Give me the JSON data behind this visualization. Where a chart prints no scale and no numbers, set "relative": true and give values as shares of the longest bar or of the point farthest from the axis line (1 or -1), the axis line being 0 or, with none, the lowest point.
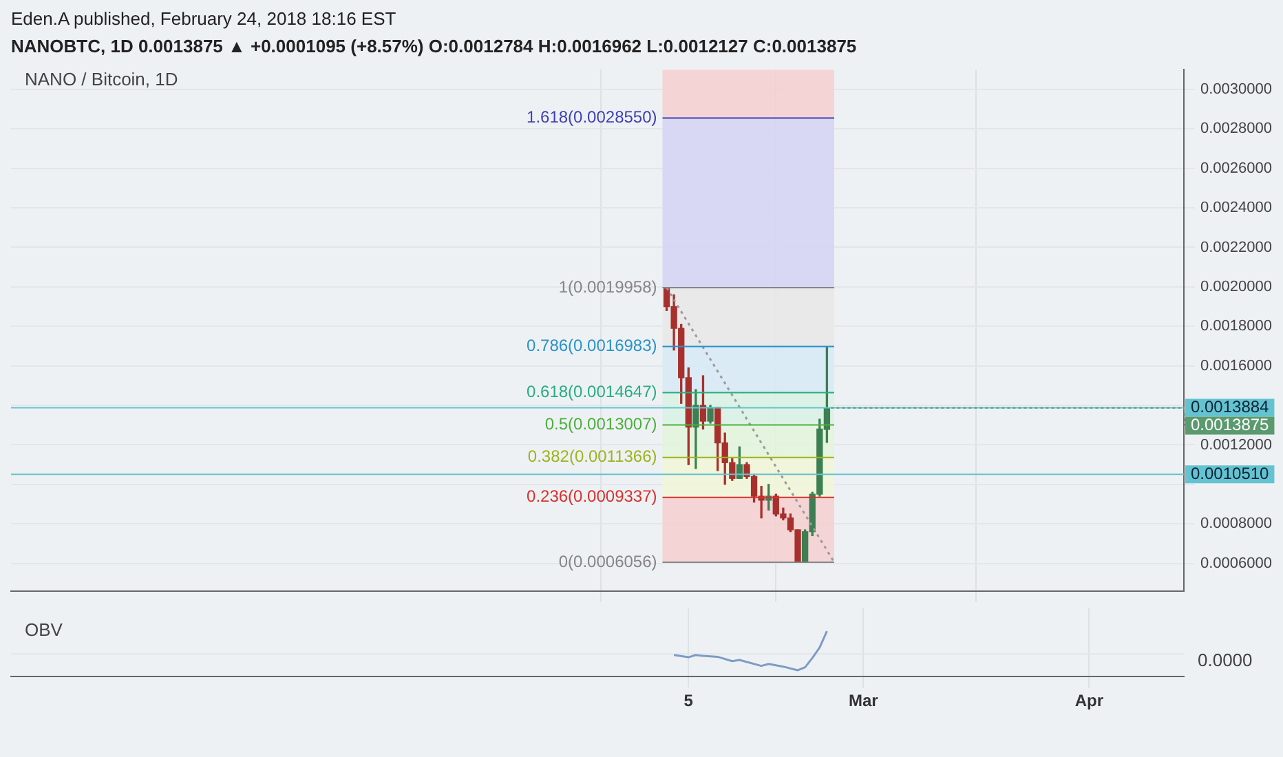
{
  "chart_data": [
    {
      "type": "candlestick",
      "title": "Eden.A published, February 24, 2018 18:16 EST",
      "subtitle": "NANOBTC, 1D  0.0013875 ▲ +0.0001095 (+8.57%) O:0.0012784 H:0.0016962 L:0.0012127 C:0.0013875",
      "annotations": [
        "NANO / Bitcoin, 1D",
        {
          "text": "0.0013875",
          "x": "2018-02-24",
          "y": 0.0013875
        }
      ],
      "x": [
        "2018-02-02",
        "2018-02-03",
        "2018-02-04",
        "2018-02-05",
        "2018-02-06",
        "2018-02-07",
        "2018-02-08",
        "2018-02-09",
        "2018-02-10",
        "2018-02-11",
        "2018-02-12",
        "2018-02-13",
        "2018-02-14",
        "2018-02-15",
        "2018-02-16",
        "2018-02-17",
        "2018-02-18",
        "2018-02-19",
        "2018-02-20",
        "2018-02-21",
        "2018-02-22",
        "2018-02-23",
        "2018-02-24"
      ],
      "ohlc": [
        [
          0.00199,
          0.0019958,
          0.00188,
          0.0019
        ],
        [
          0.0019,
          0.00196,
          0.00168,
          0.00179
        ],
        [
          0.00179,
          0.00181,
          0.00141,
          0.00154
        ],
        [
          0.00154,
          0.00159,
          0.0011,
          0.00129
        ],
        [
          0.00129,
          0.00148,
          0.00108,
          0.0014
        ],
        [
          0.0014,
          0.00155,
          0.00128,
          0.00132
        ],
        [
          0.00132,
          0.0014,
          0.00131,
          0.00139
        ],
        [
          0.00139,
          0.00139,
          0.00107,
          0.00121
        ],
        [
          0.00121,
          0.00126,
          0.001,
          0.00111
        ],
        [
          0.00111,
          0.00113,
          0.00102,
          0.00103
        ],
        [
          0.00103,
          0.00119,
          0.00103,
          0.0011
        ],
        [
          0.0011,
          0.00111,
          0.00103,
          0.00104
        ],
        [
          0.00104,
          0.00105,
          0.00091,
          0.00094
        ],
        [
          0.00094,
          0.00099,
          0.00083,
          0.00092
        ],
        [
          0.00092,
          0.001,
          0.00087,
          0.00094
        ],
        [
          0.00094,
          0.00095,
          0.00084,
          0.00085
        ],
        [
          0.00085,
          0.00088,
          0.00082,
          0.00083
        ],
        [
          0.00083,
          0.00085,
          0.00076,
          0.00077
        ],
        [
          0.00077,
          0.00077,
          0.0006056,
          0.00061
        ],
        [
          0.00061,
          0.00077,
          0.00061,
          0.00076
        ],
        [
          0.00076,
          0.00096,
          0.00074,
          0.00095
        ],
        [
          0.00095,
          0.00133,
          0.00094,
          0.00128
        ],
        [
          0.0012784,
          0.0016962,
          0.0012127,
          0.0013875
        ]
      ],
      "colors": [
        "#a8302c",
        "#a8302c",
        "#a8302c",
        "#a8302c",
        "#3d7f52",
        "#a8302c",
        "#3d7f52",
        "#a8302c",
        "#a8302c",
        "#a8302c",
        "#3d7f52",
        "#a8302c",
        "#a8302c",
        "#a8302c",
        "#3d7f52",
        "#a8302c",
        "#a8302c",
        "#a8302c",
        "#a8302c",
        "#3d7f52",
        "#3d7f52",
        "#3d7f52",
        "#3d7f52"
      ],
      "series": [
        {
          "type": "line",
          "x": [
            "2018-02-02",
            "2018-02-25"
          ],
          "values": [
            0.0019958,
            0.0006056
          ],
          "color": "#9a9a9a",
          "line_style": "dotted"
        }
      ],
      "xlim": [
        "2017-11-04",
        "2018-04-14"
      ],
      "xticks": [
        {
          "value": "2018-02-05",
          "label": null
        },
        {
          "value": "2018-03-01",
          "label": null
        },
        {
          "value": "2018-04-01",
          "label": null
        }
      ],
      "ylim": [
        0.00046,
        0.0031
      ],
      "yticks": [
        {
          "value": 0.0006,
          "label": "0.0006000"
        },
        {
          "value": 0.0008,
          "label": "0.0008000"
        },
        {
          "value": 0.001,
          "label": null
        },
        {
          "value": 0.0012,
          "label": "0.0012000"
        },
        {
          "value": 0.0014,
          "label": null
        },
        {
          "value": 0.0016,
          "label": "0.0016000"
        },
        {
          "value": 0.0018,
          "label": "0.0018000"
        },
        {
          "value": 0.002,
          "label": "0.0020000"
        },
        {
          "value": 0.0022,
          "label": "0.0022000"
        },
        {
          "value": 0.0024,
          "label": "0.0024000"
        },
        {
          "value": 0.0026,
          "label": "0.0026000"
        },
        {
          "value": 0.0028,
          "label": "0.0028000"
        },
        {
          "value": 0.003,
          "label": "0.0030000"
        }
      ],
      "tick_labels": "y",
      "grid": true,
      "bands": [
        {
          "axis": "y",
          "from": 0.0006056,
          "to": 0.0009337,
          "color": "#f4cfcf"
        },
        {
          "axis": "y",
          "from": 0.0009337,
          "to": 0.0011366,
          "color": "#f1f6d6"
        },
        {
          "axis": "y",
          "from": 0.0011366,
          "to": 0.0013007,
          "color": "#e2f5d9"
        },
        {
          "axis": "y",
          "from": 0.0013007,
          "to": 0.0014647,
          "color": "#d8f2e3"
        },
        {
          "axis": "y",
          "from": 0.0014647,
          "to": 0.0016983,
          "color": "#d6eaf6"
        },
        {
          "axis": "y",
          "from": 0.0016983,
          "to": 0.0019958,
          "color": "#e8e8e8"
        },
        {
          "axis": "y",
          "from": 0.0019958,
          "to": 0.002855,
          "color": "#d4d3f5"
        },
        {
          "axis": "y",
          "from": 0.002855,
          "to": 0.0031,
          "color": "#f4cfcf"
        }
      ],
      "ref_lines": [
        {
          "axis": "y",
          "value": 0.002855,
          "label": "1.618(0.0028550)",
          "color": "#3f3fb0"
        },
        {
          "axis": "y",
          "value": 0.0019958,
          "label": "1(0.0019958)",
          "color": "#858585"
        },
        {
          "axis": "y",
          "value": 0.0016983,
          "label": "0.786(0.0016983)",
          "color": "#2a92c9"
        },
        {
          "axis": "y",
          "value": 0.0014647,
          "label": "0.618(0.0014647)",
          "color": "#27ae7c"
        },
        {
          "axis": "y",
          "value": 0.0013007,
          "label": "0.5(0.0013007)",
          "color": "#4caf3c"
        },
        {
          "axis": "y",
          "value": 0.0011366,
          "label": "0.382(0.0011366)",
          "color": "#9cb41a"
        },
        {
          "axis": "y",
          "value": 0.0009337,
          "label": "0.236(0.0009337)",
          "color": "#d8302c"
        },
        {
          "axis": "y",
          "value": 0.0006056,
          "label": "0(0.0006056)",
          "color": "#858585"
        },
        {
          "axis": "y",
          "value": 0.0013884,
          "label": "0.0013884",
          "color": "#63c3d1"
        },
        {
          "axis": "y",
          "value": 0.001051,
          "label": "0.0010510",
          "color": "#63c3d1"
        }
      ]
    },
    {
      "type": "line",
      "annotations": [
        "OBV",
        "0.0000"
      ],
      "relative": true,
      "series": [
        {
          "color": "#7d9cc4",
          "x": [
            "2018-02-03",
            "2018-02-05",
            "2018-02-06",
            "2018-02-07",
            "2018-02-09",
            "2018-02-11",
            "2018-02-12",
            "2018-02-15",
            "2018-02-16",
            "2018-02-18",
            "2018-02-20",
            "2018-02-21",
            "2018-02-22",
            "2018-02-23",
            "2018-02-24"
          ],
          "values": [
            -0.05,
            -0.15,
            -0.05,
            -0.09,
            -0.13,
            -0.32,
            -0.27,
            -0.53,
            -0.44,
            -0.56,
            -0.72,
            -0.59,
            -0.18,
            0.28,
            1
          ]
        }
      ],
      "xlim": [
        "2017-11-04",
        "2018-04-14"
      ],
      "xticks": [
        {
          "value": "2018-02-05",
          "label": "5"
        },
        {
          "value": "2018-03-01",
          "label": "Mar"
        },
        {
          "value": "2018-04-01",
          "label": "Apr"
        }
      ],
      "tick_labels": "x",
      "grid": "x"
    }
  ]
}
